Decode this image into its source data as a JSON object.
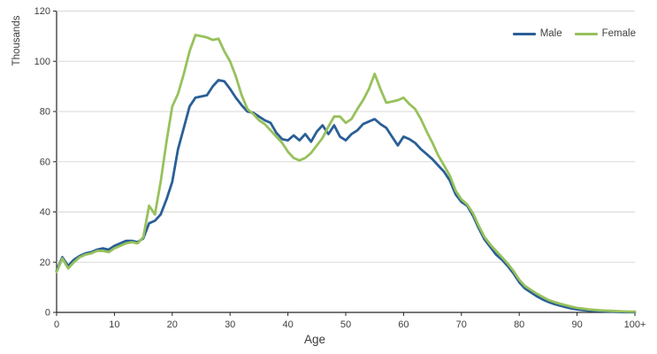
{
  "chart_data": {
    "type": "line",
    "title": "",
    "xlabel": "Age",
    "ylabel": "Thousands",
    "xlim": [
      0,
      100
    ],
    "ylim": [
      0,
      120
    ],
    "yticks": [
      0,
      20,
      40,
      60,
      80,
      100,
      120
    ],
    "xticks": [
      {
        "value": 0,
        "label": "0"
      },
      {
        "value": 10,
        "label": "10"
      },
      {
        "value": 20,
        "label": "20"
      },
      {
        "value": 30,
        "label": "30"
      },
      {
        "value": 40,
        "label": "40"
      },
      {
        "value": 50,
        "label": "50"
      },
      {
        "value": 60,
        "label": "60"
      },
      {
        "value": 70,
        "label": "70"
      },
      {
        "value": 80,
        "label": "80"
      },
      {
        "value": 90,
        "label": "90"
      },
      {
        "value": 100,
        "label": "100+"
      }
    ],
    "grid": "horizontal",
    "legend_position": "top-right",
    "colors": {
      "gridline": "#d9d9d9",
      "axis": "#262626",
      "tick_text": "#404040"
    },
    "series": [
      {
        "name": "Male",
        "color": "#2a5f96",
        "values": [
          16.5,
          22,
          18.5,
          21,
          22.5,
          23.5,
          24,
          25,
          25.5,
          25,
          26.5,
          27.5,
          28.5,
          28.5,
          28,
          29.5,
          35.5,
          36.5,
          39,
          45,
          52,
          65,
          73.5,
          82,
          85.5,
          86,
          86.5,
          90,
          92.5,
          92,
          89,
          85.5,
          82.5,
          80,
          79.5,
          78,
          76.5,
          75.5,
          71.5,
          69,
          68.5,
          70.5,
          68.5,
          71,
          68,
          72,
          74.5,
          71,
          74.5,
          70,
          68.5,
          71,
          72.5,
          75,
          76,
          77,
          75,
          73.5,
          70,
          66.5,
          70,
          69,
          67.5,
          65,
          63,
          61,
          58.5,
          56,
          52.5,
          47,
          44,
          42.5,
          38.5,
          33.5,
          29,
          26,
          23,
          21,
          18.5,
          15.5,
          12,
          9.5,
          8,
          6.5,
          5.2,
          4.2,
          3.4,
          2.7,
          2.1,
          1.6,
          1.2,
          0.9,
          0.7,
          0.6,
          0.5,
          0.4,
          0.3,
          0.2,
          0.1,
          0.1,
          0.1
        ]
      },
      {
        "name": "Female",
        "color": "#97c15c",
        "values": [
          16,
          21.5,
          17.5,
          20,
          22,
          23,
          23.5,
          24.5,
          24.5,
          24,
          25.5,
          26.5,
          27.5,
          28,
          27.5,
          30,
          42.5,
          39,
          52,
          68,
          82,
          87,
          95,
          104,
          110.5,
          110,
          109.5,
          108.5,
          109,
          104,
          100,
          94,
          86.5,
          81,
          79,
          76.5,
          75,
          72.5,
          70,
          67.5,
          64,
          61.5,
          60.5,
          61.5,
          63.5,
          66.5,
          69.5,
          74,
          78,
          78,
          75.5,
          77,
          81,
          84.5,
          89,
          95,
          89,
          83.5,
          84,
          84.5,
          85.5,
          83,
          81,
          77,
          72,
          67.5,
          62.5,
          58.5,
          54.5,
          48.5,
          45,
          43,
          39.5,
          34.5,
          30,
          27,
          24.5,
          22,
          19.5,
          16.5,
          13,
          10.5,
          9,
          7.5,
          6.2,
          5,
          4.2,
          3.5,
          2.9,
          2.3,
          1.8,
          1.5,
          1.2,
          1,
          0.8,
          0.7,
          0.6,
          0.5,
          0.4,
          0.3,
          0.3
        ]
      }
    ]
  }
}
